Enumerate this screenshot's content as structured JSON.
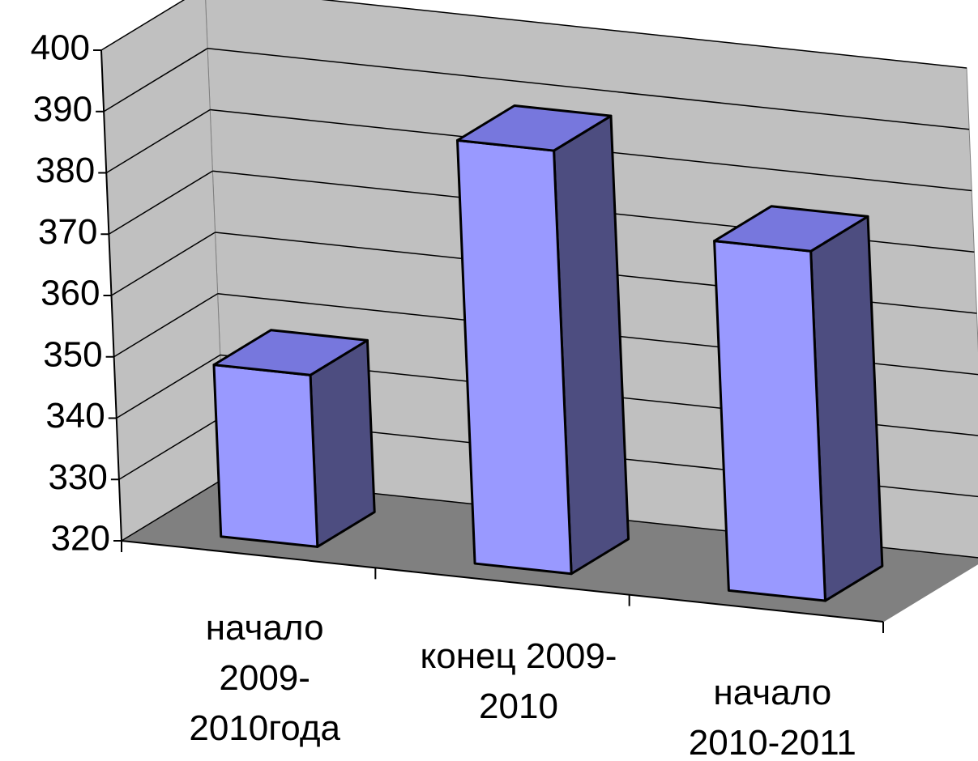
{
  "chart_data": {
    "type": "bar3d",
    "categories": [
      "начало 2009-2010года",
      "конец 2009-2010",
      "начало 2010-2011"
    ],
    "values": [
      348,
      389,
      377
    ],
    "color": "#9999ff",
    "ylim": [
      320,
      400
    ],
    "yticks": [
      320,
      330,
      340,
      350,
      360,
      370,
      380,
      390,
      400
    ],
    "grid": true
  }
}
